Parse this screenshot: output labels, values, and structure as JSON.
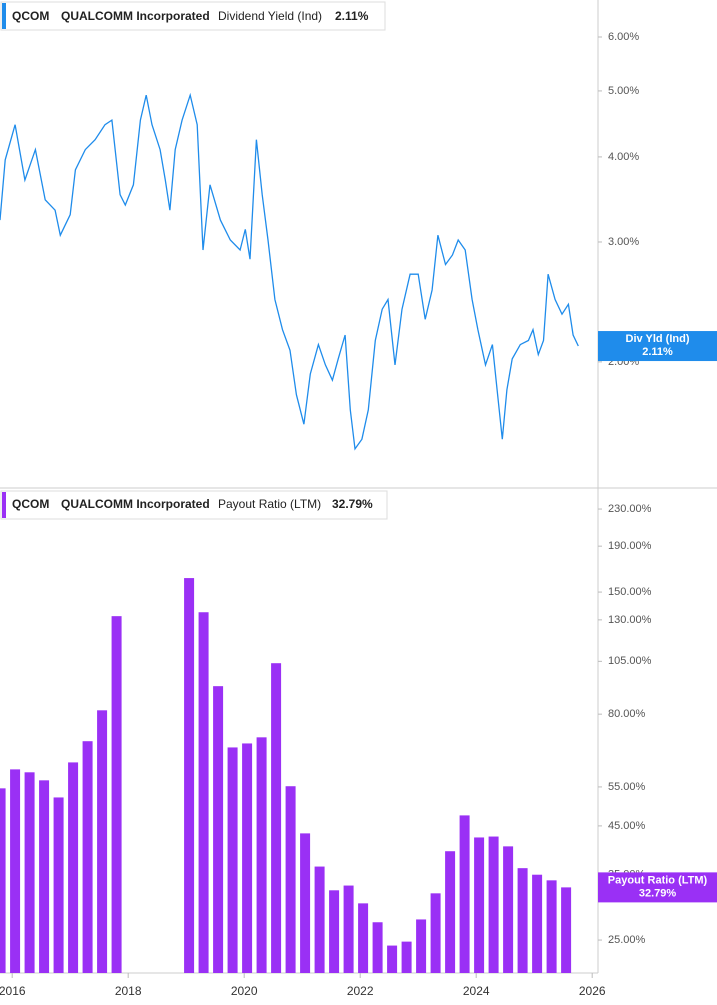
{
  "chart_data": [
    {
      "type": "line",
      "log_scale": true,
      "legend": {
        "ticker": "QCOM",
        "name": "QUALCOMM Incorporated",
        "metric": "Dividend Yield (Ind)",
        "value": "2.11%"
      },
      "badge": {
        "label": "Div Yld (Ind)",
        "value": "2.11%"
      },
      "color": "#1f8ceb",
      "xlim": [
        2015.79,
        2026.1
      ],
      "ylim": [
        1.31,
        6.8
      ],
      "yticks": [
        {
          "value": 6,
          "label": "6.00%"
        },
        {
          "value": 5,
          "label": "5.00%"
        },
        {
          "value": 4,
          "label": "4.00%"
        },
        {
          "value": 3,
          "label": "3.00%"
        },
        {
          "value": 2,
          "label": "2.00%"
        }
      ],
      "x": [
        2015.79,
        2015.88,
        2016.05,
        2016.22,
        2016.4,
        2016.57,
        2016.74,
        2016.83,
        2017.0,
        2017.09,
        2017.26,
        2017.43,
        2017.6,
        2017.72,
        2017.86,
        2017.95,
        2018.09,
        2018.21,
        2018.31,
        2018.41,
        2018.55,
        2018.64,
        2018.72,
        2018.81,
        2018.93,
        2019.07,
        2019.19,
        2019.29,
        2019.41,
        2019.59,
        2019.76,
        2019.93,
        2020.02,
        2020.1,
        2020.21,
        2020.31,
        2020.41,
        2020.53,
        2020.66,
        2020.79,
        2020.9,
        2021.03,
        2021.14,
        2021.28,
        2021.4,
        2021.52,
        2021.62,
        2021.74,
        2021.83,
        2021.91,
        2022.03,
        2022.14,
        2022.26,
        2022.38,
        2022.48,
        2022.6,
        2022.72,
        2022.86,
        2023.0,
        2023.12,
        2023.24,
        2023.34,
        2023.47,
        2023.59,
        2023.69,
        2023.81,
        2023.93,
        2024.03,
        2024.16,
        2024.28,
        2024.36,
        2024.45,
        2024.53,
        2024.62,
        2024.76,
        2024.9,
        2024.98,
        2025.07,
        2025.16,
        2025.24,
        2025.36,
        2025.48,
        2025.59,
        2025.67,
        2025.76
      ],
      "values": [
        3.23,
        3.96,
        4.46,
        3.7,
        4.1,
        3.46,
        3.34,
        3.07,
        3.29,
        3.83,
        4.1,
        4.24,
        4.46,
        4.53,
        3.52,
        3.4,
        3.64,
        4.53,
        4.93,
        4.46,
        4.1,
        3.7,
        3.34,
        4.1,
        4.53,
        4.93,
        4.46,
        2.92,
        3.64,
        3.23,
        3.02,
        2.92,
        3.13,
        2.83,
        4.24,
        3.52,
        3.02,
        2.47,
        2.23,
        2.08,
        1.79,
        1.62,
        1.92,
        2.12,
        1.98,
        1.88,
        2.02,
        2.19,
        1.7,
        1.49,
        1.54,
        1.7,
        2.15,
        2.39,
        2.47,
        1.98,
        2.39,
        2.69,
        2.69,
        2.31,
        2.55,
        3.07,
        2.78,
        2.87,
        3.02,
        2.92,
        2.47,
        2.23,
        1.98,
        2.12,
        1.82,
        1.54,
        1.82,
        2.02,
        2.12,
        2.15,
        2.23,
        2.05,
        2.15,
        2.69,
        2.47,
        2.35,
        2.43,
        2.19,
        2.11
      ]
    },
    {
      "type": "bar",
      "log_scale": true,
      "legend": {
        "ticker": "QCOM",
        "name": "QUALCOMM Incorporated",
        "metric": "Payout Ratio (LTM)",
        "value": "32.79%"
      },
      "badge": {
        "label": "Payout Ratio (LTM)",
        "value": "32.79%"
      },
      "color": "#9a30f5",
      "xlim": [
        2015.79,
        2026.1
      ],
      "xticks": [
        2016,
        2018,
        2020,
        2022,
        2024,
        2026
      ],
      "ylim": [
        21.1,
        253.7
      ],
      "yticks": [
        {
          "value": 230,
          "label": "230.00%"
        },
        {
          "value": 190,
          "label": "190.00%"
        },
        {
          "value": 150,
          "label": "150.00%"
        },
        {
          "value": 130,
          "label": "130.00%"
        },
        {
          "value": 105,
          "label": "105.00%"
        },
        {
          "value": 80,
          "label": "80.00%"
        },
        {
          "value": 55,
          "label": "55.00%"
        },
        {
          "value": 45,
          "label": "45.00%"
        },
        {
          "value": 35,
          "label": "35.00%"
        },
        {
          "value": 25,
          "label": "25.00%"
        }
      ],
      "x": [
        2015.8,
        2016.05,
        2016.3,
        2016.55,
        2016.8,
        2017.05,
        2017.3,
        2017.55,
        2017.8,
        2018.05,
        2018.3,
        2018.55,
        2018.8,
        2019.05,
        2019.3,
        2019.55,
        2019.8,
        2020.05,
        2020.3,
        2020.55,
        2020.8,
        2021.05,
        2021.3,
        2021.55,
        2021.8,
        2022.05,
        2022.3,
        2022.55,
        2022.8,
        2023.05,
        2023.3,
        2023.55,
        2023.8,
        2024.05,
        2024.3,
        2024.55,
        2024.8,
        2025.05,
        2025.3,
        2025.55
      ],
      "values": [
        54.6,
        60.2,
        59.3,
        56.9,
        52.1,
        62.4,
        69.6,
        81.6,
        132.5,
        null,
        null,
        null,
        null,
        161.2,
        135.2,
        92.4,
        67.4,
        68.8,
        71.0,
        104.0,
        55.2,
        43.3,
        36.5,
        32.3,
        33.1,
        30.2,
        27.4,
        24.3,
        24.8,
        27.8,
        31.8,
        39.5,
        47.5,
        42.4,
        42.6,
        40.5,
        36.2,
        35.0,
        34.0,
        32.79
      ]
    }
  ]
}
